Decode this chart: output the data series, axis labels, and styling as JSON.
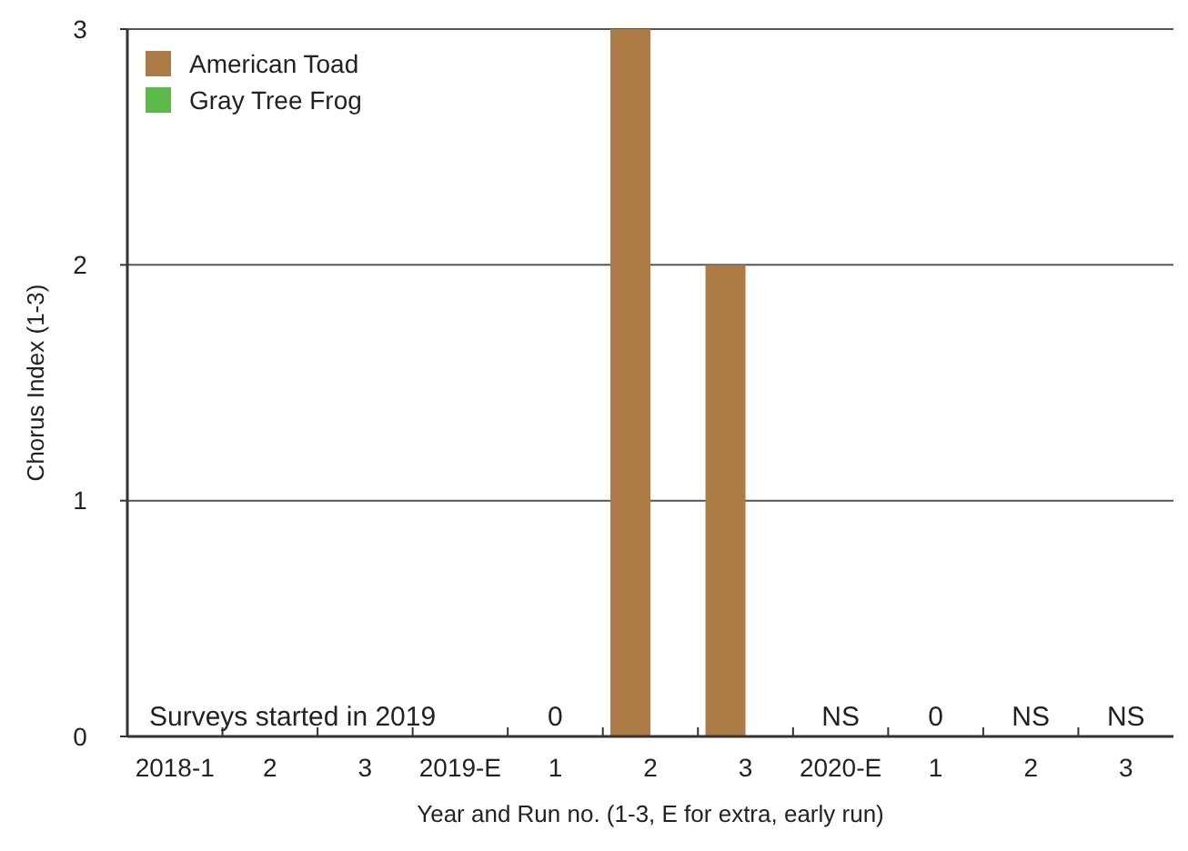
{
  "chart_data": {
    "type": "bar",
    "xlabel": "Year and Run no. (1-3, E for extra, early run)",
    "ylabel": "Chorus Index (1-3)",
    "categories": [
      "2018-1",
      "2",
      "3",
      "2019-E",
      "1",
      "2",
      "3",
      "2020-E",
      "1",
      "2",
      "3"
    ],
    "series": [
      {
        "name": "American Toad",
        "color": "#ad7b45",
        "values": [
          null,
          null,
          null,
          null,
          0,
          3,
          2,
          null,
          0,
          null,
          null
        ],
        "value_labels": [
          null,
          null,
          null,
          null,
          "0",
          null,
          null,
          "NS",
          "0",
          "NS",
          "NS"
        ]
      },
      {
        "name": "Gray Tree Frog",
        "color": "#5cb848",
        "values": [
          null,
          null,
          null,
          null,
          0,
          0,
          0,
          null,
          0,
          null,
          null
        ]
      }
    ],
    "ylim": [
      0,
      3
    ],
    "yticks": [
      0,
      1,
      2,
      3
    ],
    "grid": "y",
    "legend": "top left",
    "annotations": [
      "Surveys started in 2019"
    ]
  }
}
